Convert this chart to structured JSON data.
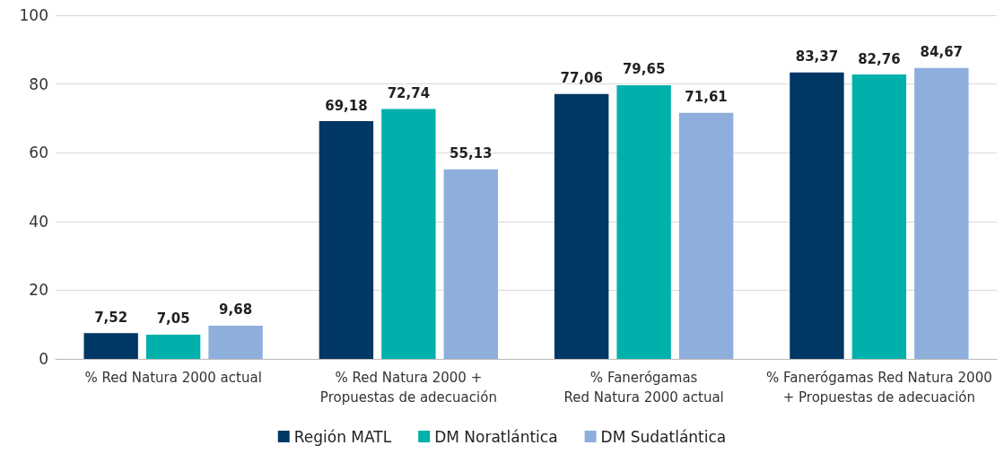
{
  "chart_data": {
    "type": "bar",
    "categories": [
      "% Red Natura 2000 actual",
      "% Red Natura 2000 +\nPropuestas de adecuación",
      "% Fanerógamas\nRed Natura 2000 actual",
      "% Fanerógamas Red Natura 2000\n+ Propuestas de adecuación"
    ],
    "series": [
      {
        "name": "Región MATL",
        "color": "#003764",
        "values": [
          7.52,
          69.18,
          77.06,
          83.37
        ],
        "value_labels": [
          "7,52",
          "69,18",
          "77,06",
          "83,37"
        ]
      },
      {
        "name": "DM Noratlántica",
        "color": "#00b0aa",
        "values": [
          7.05,
          72.74,
          79.65,
          82.76
        ],
        "value_labels": [
          "7,05",
          "72,74",
          "79,65",
          "82,76"
        ]
      },
      {
        "name": "DM Sudatlántica",
        "color": "#8eaedc",
        "values": [
          9.68,
          55.13,
          71.61,
          84.67
        ],
        "value_labels": [
          "9,68",
          "55,13",
          "71,61",
          "84,67"
        ]
      }
    ],
    "ylim": [
      0,
      100
    ],
    "yticks": [
      0,
      20,
      40,
      60,
      80,
      100
    ],
    "grid": "y",
    "legend": "bottom"
  }
}
